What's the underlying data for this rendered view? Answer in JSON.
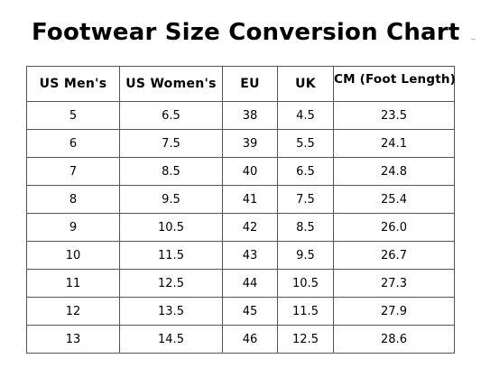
{
  "title": "Footwear Size Conversion Chart",
  "table": {
    "headers": [
      "US Men's",
      "US Women's",
      "EU",
      "UK",
      "CM (Foot Length)"
    ],
    "rows": [
      [
        "5",
        "6.5",
        "38",
        "4.5",
        "23.5"
      ],
      [
        "6",
        "7.5",
        "39",
        "5.5",
        "24.1"
      ],
      [
        "7",
        "8.5",
        "40",
        "6.5",
        "24.8"
      ],
      [
        "8",
        "9.5",
        "41",
        "7.5",
        "25.4"
      ],
      [
        "9",
        "10.5",
        "42",
        "8.5",
        "26.0"
      ],
      [
        "10",
        "11.5",
        "43",
        "9.5",
        "26.7"
      ],
      [
        "11",
        "12.5",
        "44",
        "10.5",
        "27.3"
      ],
      [
        "12",
        "13.5",
        "45",
        "11.5",
        "27.9"
      ],
      [
        "13",
        "14.5",
        "46",
        "12.5",
        "28.6"
      ]
    ]
  }
}
